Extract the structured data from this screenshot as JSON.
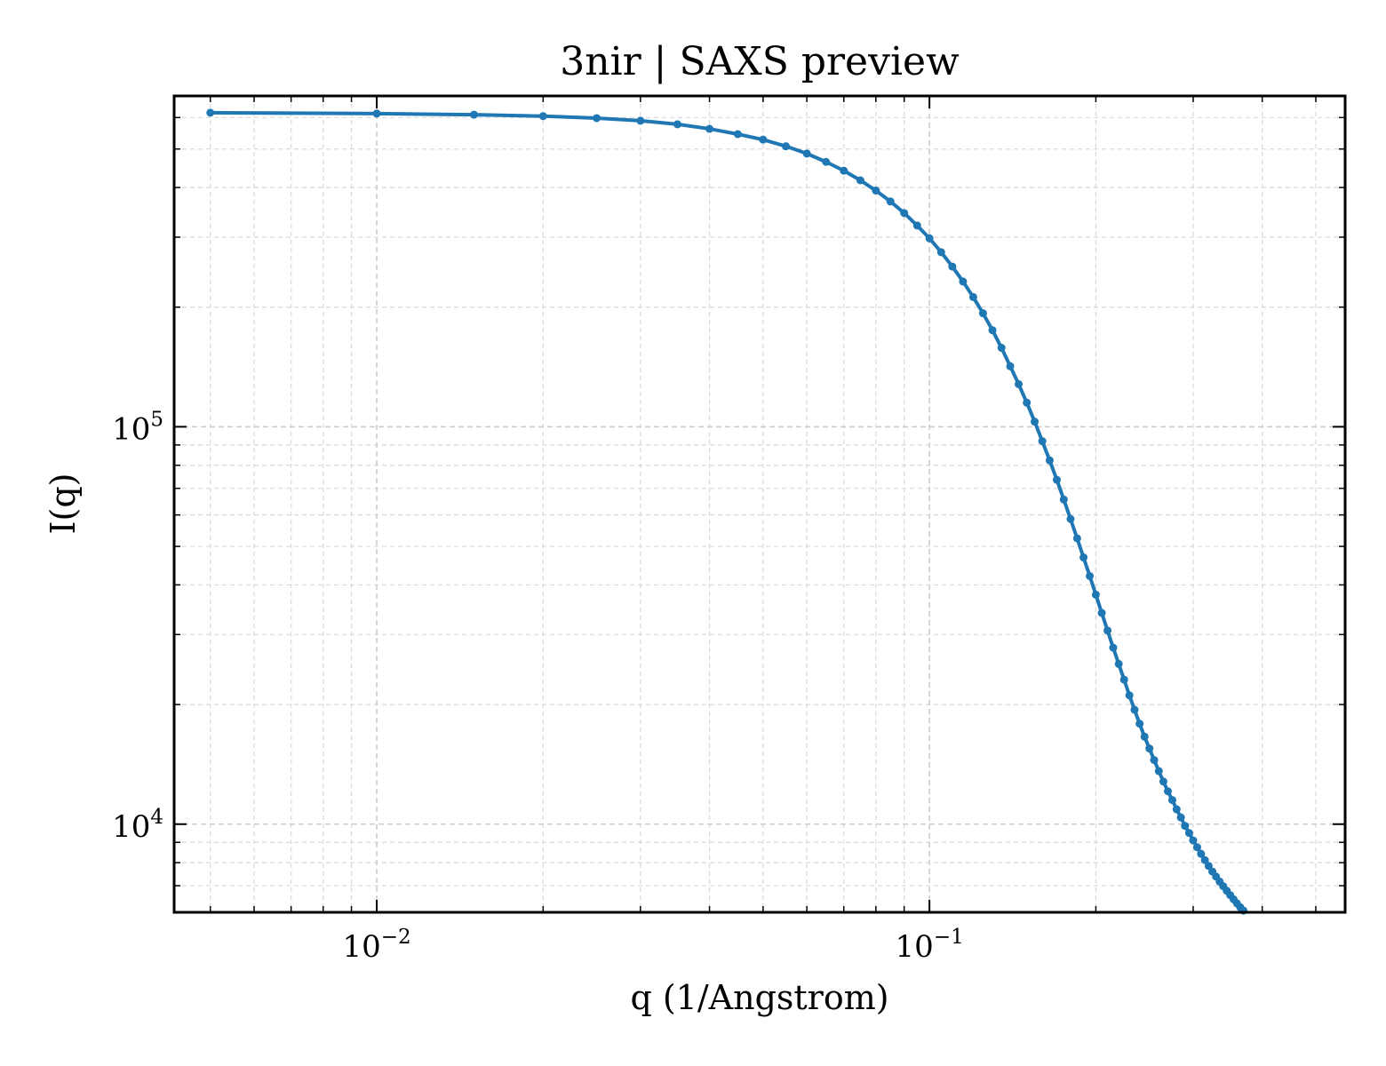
{
  "chart_data": {
    "type": "line",
    "title": "3nir | SAXS preview",
    "xlabel": "q (1/Angstrom)",
    "ylabel": "I(q)",
    "x_scale": "log",
    "y_scale": "log",
    "xlim": [
      0.0043,
      0.565
    ],
    "ylim": [
      6000,
      680000
    ],
    "grid": true,
    "x_major_ticks": [
      {
        "value": 0.01,
        "base": "10",
        "exp": "−2"
      },
      {
        "value": 0.1,
        "base": "10",
        "exp": "−1"
      }
    ],
    "y_major_ticks": [
      {
        "value": 10000,
        "base": "10",
        "exp": "4"
      },
      {
        "value": 100000,
        "base": "10",
        "exp": "5"
      }
    ],
    "series": [
      {
        "color": "#1f77b4",
        "points": [
          [
            0.005,
            617000
          ],
          [
            0.01,
            614000
          ],
          [
            0.015,
            610000
          ],
          [
            0.02,
            605000
          ],
          [
            0.025,
            598000
          ],
          [
            0.03,
            589000
          ],
          [
            0.035,
            577000
          ],
          [
            0.04,
            562000
          ],
          [
            0.045,
            545000
          ],
          [
            0.05,
            528000
          ],
          [
            0.055,
            508000
          ],
          [
            0.06,
            487000
          ],
          [
            0.065,
            464000
          ],
          [
            0.07,
            441000
          ],
          [
            0.075,
            417000
          ],
          [
            0.08,
            393000
          ],
          [
            0.085,
            369000
          ],
          [
            0.09,
            345000
          ],
          [
            0.095,
            321000
          ],
          [
            0.1,
            298000
          ],
          [
            0.105,
            275000
          ],
          [
            0.11,
            253000
          ],
          [
            0.115,
            232000
          ],
          [
            0.12,
            212000
          ],
          [
            0.125,
            193000
          ],
          [
            0.13,
            175000
          ],
          [
            0.135,
            158000
          ],
          [
            0.14,
            142000
          ],
          [
            0.145,
            128000
          ],
          [
            0.15,
            115000
          ],
          [
            0.155,
            103000
          ],
          [
            0.16,
            92000
          ],
          [
            0.165,
            82300
          ],
          [
            0.17,
            73500
          ],
          [
            0.175,
            65600
          ],
          [
            0.18,
            58600
          ],
          [
            0.185,
            52400
          ],
          [
            0.19,
            46900
          ],
          [
            0.195,
            42100
          ],
          [
            0.2,
            37800
          ],
          [
            0.205,
            34000
          ],
          [
            0.21,
            30700
          ],
          [
            0.215,
            27800
          ],
          [
            0.22,
            25300
          ],
          [
            0.225,
            23100
          ],
          [
            0.23,
            21100
          ],
          [
            0.235,
            19400
          ],
          [
            0.24,
            17900
          ],
          [
            0.245,
            16600
          ],
          [
            0.25,
            15500
          ],
          [
            0.255,
            14500
          ],
          [
            0.26,
            13600
          ],
          [
            0.265,
            12800
          ],
          [
            0.27,
            12100
          ],
          [
            0.275,
            11500
          ],
          [
            0.28,
            10900
          ],
          [
            0.285,
            10400
          ],
          [
            0.29,
            9900
          ],
          [
            0.295,
            9500
          ],
          [
            0.3,
            9100
          ],
          [
            0.305,
            8750
          ],
          [
            0.31,
            8420
          ],
          [
            0.315,
            8120
          ],
          [
            0.32,
            7850
          ],
          [
            0.325,
            7600
          ],
          [
            0.33,
            7380
          ],
          [
            0.335,
            7170
          ],
          [
            0.34,
            6980
          ],
          [
            0.345,
            6800
          ],
          [
            0.35,
            6630
          ],
          [
            0.355,
            6470
          ],
          [
            0.36,
            6320
          ],
          [
            0.365,
            6180
          ],
          [
            0.37,
            6060
          ]
        ]
      }
    ]
  }
}
